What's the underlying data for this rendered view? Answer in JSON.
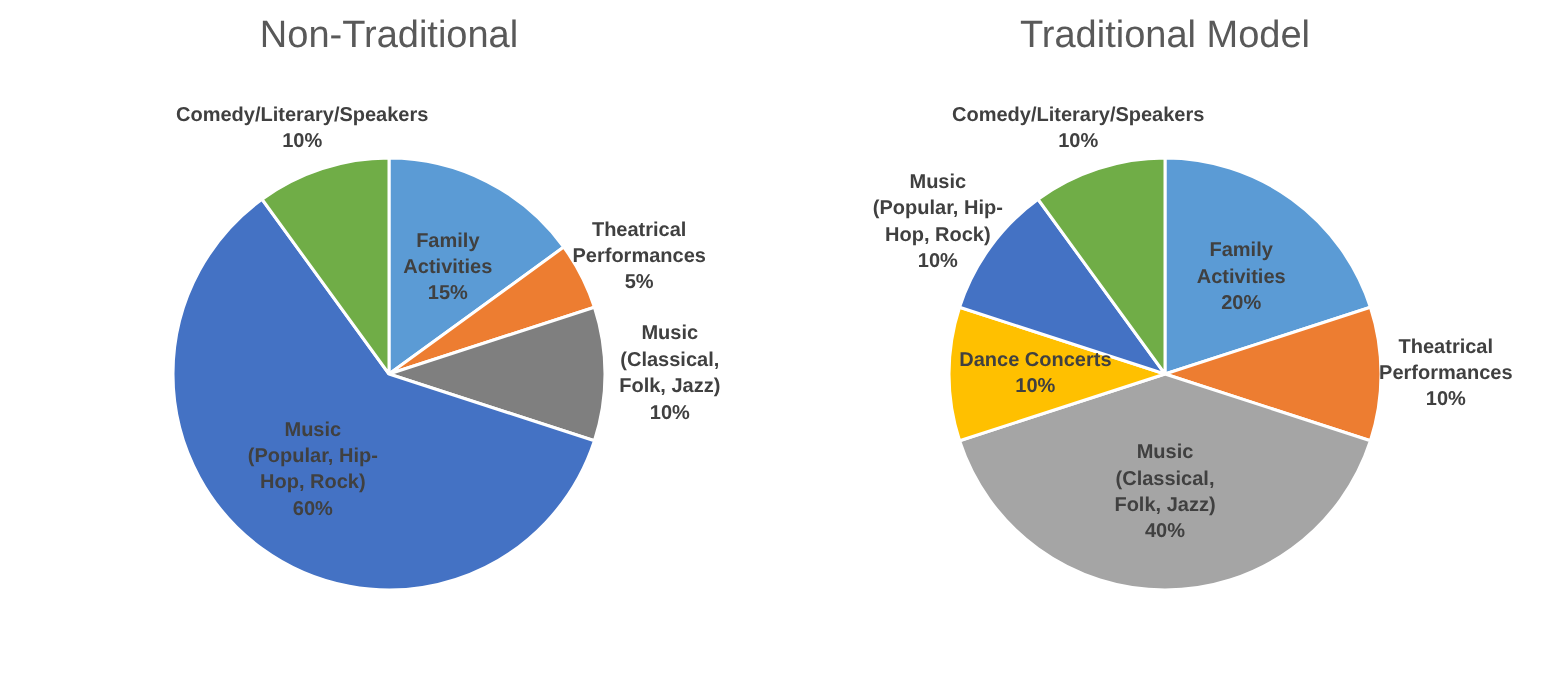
{
  "chart_data": [
    {
      "type": "pie",
      "title": "Non-Traditional",
      "categories": [
        "Family Activities",
        "Theatrical Performances",
        "Music (Classical, Folk, Jazz)",
        "Music (Popular, Hip-Hop, Rock)",
        "Comedy/Literary/Speakers"
      ],
      "values": [
        15,
        5,
        10,
        60,
        10
      ],
      "colors": [
        "#5b9bd5",
        "#ed7d31",
        "#7f7f7f",
        "#4472c4",
        "#70ad47"
      ],
      "value_labels": [
        "15%",
        "5%",
        "10%",
        "60%",
        "10%"
      ]
    },
    {
      "type": "pie",
      "title": "Traditional Model",
      "categories": [
        "Family Activities",
        "Theatrical Performances",
        "Music (Classical, Folk, Jazz)",
        "Dance Concerts",
        "Music (Popular, Hip-Hop, Rock)",
        "Comedy/Literary/Speakers"
      ],
      "values": [
        20,
        10,
        40,
        10,
        10,
        10
      ],
      "colors": [
        "#5b9bd5",
        "#ed7d31",
        "#a5a5a5",
        "#ffc000",
        "#4472c4",
        "#70ad47"
      ],
      "value_labels": [
        "20%",
        "10%",
        "40%",
        "10%",
        "10%",
        "10%"
      ]
    }
  ]
}
